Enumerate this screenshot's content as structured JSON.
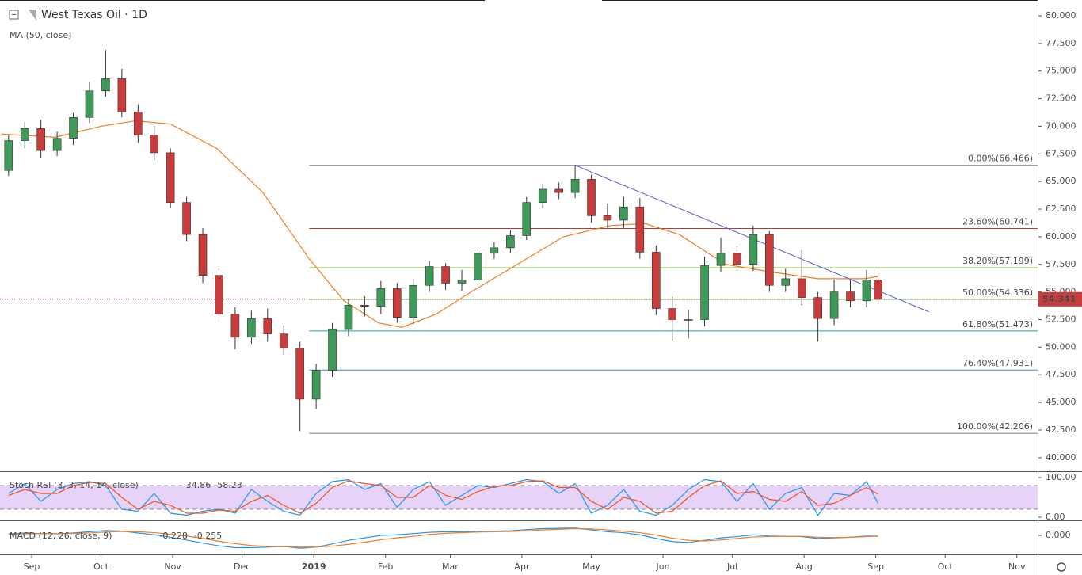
{
  "chart_data": [
    {
      "type": "candlestick",
      "title": "West Texas Oil · 1D",
      "x": [
        -10,
        -3,
        4,
        11,
        18,
        25,
        32,
        39,
        46,
        53,
        60,
        67,
        74,
        81,
        88,
        95,
        102,
        109,
        116,
        123,
        130,
        137,
        144,
        151,
        158,
        165,
        172,
        179,
        186,
        193,
        200,
        207,
        214,
        221,
        228,
        235,
        242,
        249,
        256,
        263,
        270,
        277,
        284,
        291,
        298,
        305,
        312,
        319,
        326,
        333,
        340,
        347,
        354,
        361,
        366
      ],
      "open": [
        66.0,
        68.7,
        69.8,
        67.8,
        68.9,
        70.8,
        73.2,
        74.3,
        71.3,
        69.2,
        67.6,
        63.1,
        60.2,
        56.5,
        53.0,
        50.9,
        52.6,
        51.2,
        49.9,
        45.3,
        47.9,
        51.6,
        53.8,
        53.7,
        55.3,
        52.7,
        55.6,
        57.3,
        55.8,
        56.1,
        58.5,
        59.0,
        60.1,
        63.1,
        64.3,
        64.0,
        65.2,
        61.9,
        61.5,
        62.7,
        58.6,
        53.5,
        52.5,
        52.5,
        57.4,
        58.5,
        57.5,
        60.2,
        55.6,
        56.2,
        54.5,
        52.6,
        55.0,
        54.2,
        56.1
      ],
      "high": [
        69.2,
        70.4,
        70.6,
        69.5,
        71.2,
        74.0,
        76.9,
        75.2,
        72.0,
        70.0,
        68.0,
        63.6,
        60.8,
        57.1,
        53.6,
        53.3,
        53.5,
        52.0,
        50.5,
        48.5,
        52.2,
        54.4,
        54.6,
        56.0,
        55.8,
        56.2,
        57.8,
        57.6,
        57.0,
        59.0,
        59.5,
        60.6,
        63.6,
        64.8,
        64.9,
        66.5,
        65.6,
        63.0,
        63.6,
        63.5,
        59.2,
        54.6,
        53.4,
        58.2,
        59.9,
        59.1,
        61.0,
        60.5,
        57.1,
        58.8,
        55.0,
        56.1,
        56.1,
        57.0,
        56.8
      ],
      "low": [
        65.5,
        68.0,
        67.1,
        67.3,
        68.3,
        70.3,
        72.7,
        70.8,
        68.5,
        66.9,
        62.6,
        59.6,
        55.8,
        52.2,
        49.8,
        50.3,
        50.5,
        49.3,
        42.4,
        44.4,
        47.3,
        51.0,
        52.8,
        53.0,
        52.2,
        52.1,
        55.0,
        55.2,
        55.1,
        55.7,
        58.0,
        58.5,
        59.7,
        62.6,
        63.4,
        63.5,
        61.3,
        60.8,
        60.8,
        58.0,
        52.9,
        50.6,
        50.8,
        51.9,
        56.8,
        56.9,
        56.9,
        55.0,
        55.0,
        53.8,
        50.5,
        52.0,
        53.6,
        53.6,
        53.9
      ],
      "close": [
        68.7,
        69.8,
        67.8,
        68.9,
        70.8,
        73.2,
        74.3,
        71.3,
        69.2,
        67.6,
        63.1,
        60.2,
        56.5,
        53.0,
        50.9,
        52.6,
        51.2,
        49.9,
        45.3,
        47.9,
        51.6,
        53.8,
        53.7,
        55.3,
        52.7,
        55.6,
        57.3,
        55.8,
        56.1,
        58.5,
        59.0,
        60.1,
        63.1,
        64.3,
        64.0,
        65.2,
        61.9,
        61.5,
        62.7,
        58.6,
        53.5,
        52.5,
        52.5,
        57.4,
        58.5,
        57.5,
        60.2,
        55.6,
        56.2,
        54.5,
        52.6,
        55.0,
        54.2,
        56.1,
        54.341
      ],
      "up_color": "#3f9a5a",
      "down_color": "#c83c3c",
      "overlay": {
        "name": "MA (50, close)",
        "color": "#f57c1f",
        "x": [
          -13,
          10,
          30,
          45,
          60,
          80,
          100,
          120,
          135,
          150,
          160,
          175,
          190,
          210,
          230,
          250,
          265,
          280,
          300,
          320,
          340,
          360,
          366
        ],
        "values": [
          69.3,
          69.0,
          70.0,
          70.5,
          70.2,
          68.0,
          64.0,
          58.0,
          54.2,
          52.2,
          51.8,
          53.0,
          55.0,
          57.5,
          60.0,
          61.0,
          61.2,
          60.2,
          57.5,
          56.8,
          56.2,
          56.2,
          56.4
        ]
      },
      "fib_start": 120,
      "fib_levels": [
        {
          "label": "0.00%(66.466)",
          "value": 66.466,
          "color": "#787b86"
        },
        {
          "label": "23.60%(60.741)",
          "value": 60.741,
          "color": "#c0392b"
        },
        {
          "label": "38.20%(57.199)",
          "value": 57.199,
          "color": "#8bc34a"
        },
        {
          "label": "50.00%(54.336)",
          "value": 54.336,
          "color": "#4caf50"
        },
        {
          "label": "61.80%(51.473)",
          "value": 51.473,
          "color": "#26a69a"
        },
        {
          "label": "76.40%(47.931)",
          "value": 47.931,
          "color": "#3d8fb8"
        },
        {
          "label": "100.00%(42.206)",
          "value": 42.206,
          "color": "#787b86"
        }
      ],
      "trendline": {
        "x": [
          235,
          388
        ],
        "values": [
          66.47,
          53.2
        ],
        "color": "#5b63d8"
      },
      "last_price": 54.341,
      "xlim": [
        -13.7,
        435
      ],
      "ylim": [
        38.77,
        81.43
      ],
      "xticks": [
        {
          "value": 0,
          "label": "Sep"
        },
        {
          "value": 30,
          "label": "Oct"
        },
        {
          "value": 61,
          "label": "Nov"
        },
        {
          "value": 91,
          "label": "Dec"
        },
        {
          "value": 122,
          "label": "2019"
        },
        {
          "value": 153,
          "label": "Feb"
        },
        {
          "value": 181,
          "label": "Mar"
        },
        {
          "value": 212,
          "label": "Apr"
        },
        {
          "value": 242,
          "label": "May"
        },
        {
          "value": 273,
          "label": "Jun"
        },
        {
          "value": 303,
          "label": "Jul"
        },
        {
          "value": 334,
          "label": "Aug"
        },
        {
          "value": 365,
          "label": "Sep"
        },
        {
          "value": 395,
          "label": "Oct"
        },
        {
          "value": 426,
          "label": "Nov"
        }
      ],
      "yticks": [
        {
          "value": 80,
          "label": "80.000"
        },
        {
          "value": 77.5,
          "label": "77.500"
        },
        {
          "value": 75,
          "label": "75.000"
        },
        {
          "value": 72.5,
          "label": "72.500"
        },
        {
          "value": 70,
          "label": "70.000"
        },
        {
          "value": 67.5,
          "label": "67.500"
        },
        {
          "value": 65,
          "label": "65.000"
        },
        {
          "value": 62.5,
          "label": "62.500"
        },
        {
          "value": 60,
          "label": "60.000"
        },
        {
          "value": 57.5,
          "label": "57.500"
        },
        {
          "value": 55,
          "label": "55.000"
        },
        {
          "value": 52.5,
          "label": "52.500"
        },
        {
          "value": 50,
          "label": "50.000"
        },
        {
          "value": 47.5,
          "label": "47.500"
        },
        {
          "value": 45,
          "label": "45.000"
        },
        {
          "value": 42.5,
          "label": "42.500"
        },
        {
          "value": 40,
          "label": "40.000"
        }
      ]
    },
    {
      "type": "line",
      "title": "Stoch RSI (3, 3, 14, 14, close)",
      "ylim": [
        -8,
        112
      ],
      "yticks": [
        {
          "value": 100,
          "label": "100.00"
        },
        {
          "value": 0,
          "label": "0.00"
        }
      ],
      "bands": [
        20,
        80
      ],
      "band_color": "#e1c8f5",
      "series": [
        {
          "color": "#2196f3",
          "values": [
            60,
            85,
            40,
            70,
            85,
            90,
            80,
            20,
            15,
            60,
            10,
            5,
            15,
            20,
            10,
            70,
            40,
            15,
            5,
            60,
            90,
            95,
            70,
            85,
            25,
            70,
            90,
            30,
            55,
            80,
            75,
            85,
            95,
            90,
            60,
            85,
            10,
            30,
            70,
            15,
            5,
            30,
            70,
            95,
            90,
            40,
            85,
            20,
            60,
            75,
            5,
            60,
            55,
            90,
            34.86
          ]
        },
        {
          "color": "#f4511e",
          "values": [
            55,
            70,
            60,
            60,
            80,
            88,
            85,
            50,
            20,
            40,
            30,
            10,
            10,
            18,
            15,
            40,
            55,
            30,
            10,
            35,
            75,
            92,
            85,
            80,
            50,
            50,
            80,
            55,
            45,
            65,
            78,
            80,
            90,
            92,
            75,
            75,
            40,
            20,
            50,
            40,
            10,
            15,
            50,
            80,
            92,
            60,
            65,
            45,
            40,
            65,
            30,
            35,
            55,
            75,
            58.23
          ]
        }
      ]
    },
    {
      "type": "line",
      "title": "MACD (12, 26, close, 9)",
      "ylim": [
        -6.2,
        4.4
      ],
      "yticks": [
        {
          "value": 0,
          "label": "0.000"
        }
      ],
      "series": [
        {
          "color": "#2196f3",
          "values": [
            0.5,
            0.8,
            0.6,
            0.5,
            0.8,
            1.2,
            1.6,
            1.4,
            0.8,
            0.2,
            -0.6,
            -1.5,
            -2.5,
            -3.4,
            -4.0,
            -4.0,
            -3.8,
            -3.6,
            -4.2,
            -3.8,
            -2.8,
            -1.6,
            -0.8,
            0.0,
            0.2,
            0.6,
            1.0,
            1.2,
            1.1,
            1.3,
            1.4,
            1.5,
            1.9,
            2.2,
            2.3,
            2.4,
            1.8,
            1.2,
            0.9,
            0.2,
            -1.0,
            -2.0,
            -2.3,
            -1.6,
            -0.8,
            -0.4,
            0.2,
            -0.2,
            -0.3,
            -0.4,
            -1.0,
            -0.8,
            -0.6,
            -0.2,
            -0.228
          ]
        },
        {
          "color": "#f57c1f",
          "values": [
            0.4,
            0.5,
            0.6,
            0.6,
            0.6,
            0.8,
            1.1,
            1.3,
            1.2,
            0.9,
            0.4,
            -0.2,
            -1.0,
            -1.9,
            -2.7,
            -3.3,
            -3.6,
            -3.7,
            -3.8,
            -3.8,
            -3.5,
            -2.9,
            -2.2,
            -1.4,
            -0.8,
            -0.3,
            0.3,
            0.7,
            0.9,
            1.1,
            1.2,
            1.3,
            1.5,
            1.8,
            2.0,
            2.2,
            2.1,
            1.8,
            1.4,
            0.9,
            0.1,
            -0.9,
            -1.6,
            -1.8,
            -1.5,
            -1.0,
            -0.5,
            -0.4,
            -0.3,
            -0.3,
            -0.6,
            -0.7,
            -0.6,
            -0.4,
            -0.255
          ]
        }
      ]
    }
  ]
}
